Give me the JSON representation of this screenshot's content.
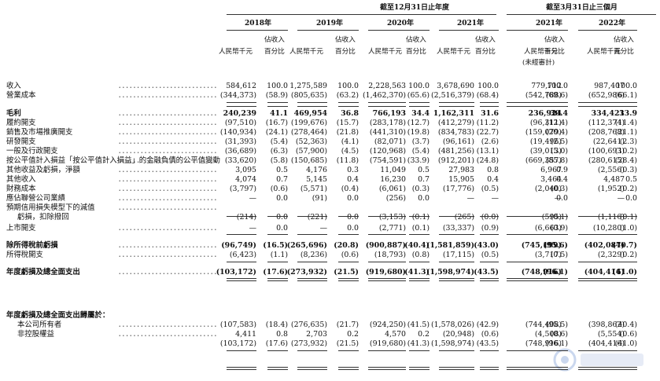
{
  "header": {
    "group1": "截至12月31日止年度",
    "group2": "截至3月31日止三個月",
    "years": [
      "2018年",
      "2019年",
      "2020年",
      "2021年",
      "2021年",
      "2022年"
    ],
    "col_amount": "人民幣千元",
    "col_pct_line1": "佔收入",
    "col_pct_line2": "百分比",
    "unaudited": "(未經審計)"
  },
  "rows": [
    {
      "label": "收入",
      "v": [
        "584,612",
        "100.0",
        "1,275,589",
        "100.0",
        "2,228,563",
        "100.0",
        "3,678,690",
        "100.0",
        "779,712",
        "100.0",
        "987,407",
        "100.0"
      ]
    },
    {
      "label": "營業成本",
      "v": [
        "(344,373)",
        "(58.9)",
        "(805,635)",
        "(63.2)",
        "(1,462,370)",
        "(65.6)",
        "(2,516,379)",
        "(68.4)",
        "(542,788)",
        "(69.6)",
        "(652,986)",
        "(66.1)"
      ]
    },
    {
      "label": "毛利",
      "v": [
        "240,239",
        "41.1",
        "469,954",
        "36.8",
        "766,193",
        "34.4",
        "1,162,311",
        "31.6",
        "236,924",
        "30.4",
        "334,421",
        "33.9"
      ]
    },
    {
      "label": "履約開支",
      "v": [
        "(97,510)",
        "(16.7)",
        "(199,676)",
        "(15.7)",
        "(283,178)",
        "(12.7)",
        "(412,279)",
        "(11.2)",
        "(96,311)",
        "(12.4)",
        "(112,374)",
        "(11.4)"
      ]
    },
    {
      "label": "銷售及市場推廣開支",
      "v": [
        "(140,934)",
        "(24.1)",
        "(278,464)",
        "(21.8)",
        "(441,310)",
        "(19.8)",
        "(834,783)",
        "(22.7)",
        "(159,079)",
        "(20.4)",
        "(208,768)",
        "(21.1)"
      ]
    },
    {
      "label": "研發開支",
      "v": [
        "(31,393)",
        "(5.4)",
        "(52,363)",
        "(4.1)",
        "(82,071)",
        "(3.7)",
        "(96,161)",
        "(2.6)",
        "(19,496)",
        "(2.5)",
        "(22,641)",
        "(2.3)"
      ]
    },
    {
      "label": "一般及行政開支",
      "v": [
        "(36,689)",
        "(6.3)",
        "(57,900)",
        "(4.5)",
        "(120,968)",
        "(5.4)",
        "(481,256)",
        "(13.1)",
        "(39,013)",
        "(5.0)",
        "(100,693)",
        "(10.2)"
      ]
    },
    {
      "label": "按公平值計入損益「按公平值計入損益」的金融負債的公平值變動",
      "v": [
        "(33,620)",
        "(5.8)",
        "(150,685)",
        "(11.8)",
        "(754,591)",
        "(33.9)",
        "(912,201)",
        "(24.8)",
        "(669,357)",
        "(85.8)",
        "(280,615)",
        "(28.4)"
      ]
    },
    {
      "label": "其他收益及虧損，淨額",
      "v": [
        "3,095",
        "0.5",
        "4,176",
        "0.3",
        "11,049",
        "0.5",
        "27,983",
        "0.8",
        "6,967",
        "0.9",
        "(2,556)",
        "(0.3)"
      ]
    },
    {
      "label": "其他收入",
      "v": [
        "4,074",
        "0.7",
        "5,145",
        "0.4",
        "16,230",
        "0.7",
        "15,905",
        "0.4",
        "3,464",
        "0.4",
        "4,487",
        "0.5"
      ]
    },
    {
      "label": "財務成本",
      "v": [
        "(3,797)",
        "(0.6)",
        "(5,571)",
        "(0.4)",
        "(6,061)",
        "(0.3)",
        "(17,776)",
        "(0.5)",
        "(2,040)",
        "(0.3)",
        "(1,952)",
        "(0.2)"
      ]
    },
    {
      "label": "應佔聯營公司業績",
      "v": [
        "—",
        "0.0",
        "(91)",
        "0.0",
        "(256)",
        "0.0",
        "—",
        "—",
        "—",
        "0.0",
        "—",
        "0.0"
      ]
    },
    {
      "label": "預期信用損失模型下的減值",
      "label2": "虧損，扣除撥回",
      "v": [
        "(214)",
        "0.0",
        "(221)",
        "0.0",
        "(3,153)",
        "(0.1)",
        "(265)",
        "(0.0)",
        "(595)",
        "(0.1)",
        "(1,116)",
        "(0.1)"
      ]
    },
    {
      "label": "上市開支",
      "v": [
        "—",
        "0.0",
        "—",
        "0.0",
        "(2,771)",
        "(0.1)",
        "(33,337)",
        "(0.9)",
        "(6,663)",
        "(0.9)",
        "(10,280)",
        "(1.0)"
      ]
    },
    {
      "label": "除所得稅前虧損",
      "v": [
        "(96,749)",
        "(16.5)",
        "(265,696)",
        "(20.8)",
        "(900,887)",
        "(40.4)",
        "(1,581,859)",
        "(43.0)",
        "(745,199)",
        "(95.6)",
        "(402,087)",
        "(40.7)"
      ]
    },
    {
      "label": "所得稅開支",
      "v": [
        "(6,423)",
        "(1.1)",
        "(8,236)",
        "(0.6)",
        "(18,793)",
        "(0.8)",
        "(17,115)",
        "(0.5)",
        "(3,717)",
        "(0.5)",
        "(2,329)",
        "(0.2)"
      ]
    },
    {
      "label": "年度虧損及總全面支出",
      "v": [
        "(103,172)",
        "(17.6)",
        "(273,932)",
        "(21.5)",
        "(919,680)",
        "(41.3)",
        "(1,598,974)",
        "(43.5)",
        "(748,916)",
        "(96.1)",
        "(404,416)",
        "(41.0)"
      ]
    }
  ],
  "attrib": {
    "title": "年度虧損及總全面支出歸屬於：",
    "rows": [
      {
        "label": "本公司所有者",
        "v": [
          "(107,583)",
          "(18.4)",
          "(276,635)",
          "(21.7)",
          "(924,250)",
          "(41.5)",
          "(1,578,026)",
          "(42.9)",
          "(744,408)",
          "(95.5)",
          "(398,862)",
          "(40.4)"
        ]
      },
      {
        "label": "非控股權益",
        "v": [
          "4,411",
          "0.8",
          "2,703",
          "0.2",
          "4,570",
          "0.2",
          "(20,948)",
          "(0.6)",
          "(4,508)",
          "(0.6)",
          "(5,554)",
          "(0.6)"
        ]
      },
      {
        "label": "",
        "v": [
          "(103,172)",
          "(17.6)",
          "(273,932)",
          "(21.5)",
          "(919,680)",
          "(41.3)",
          "(1,598,974)",
          "(43.5)",
          "(748,916)",
          "(96.1)",
          "(404,416)",
          "(41.0)"
        ]
      }
    ]
  }
}
